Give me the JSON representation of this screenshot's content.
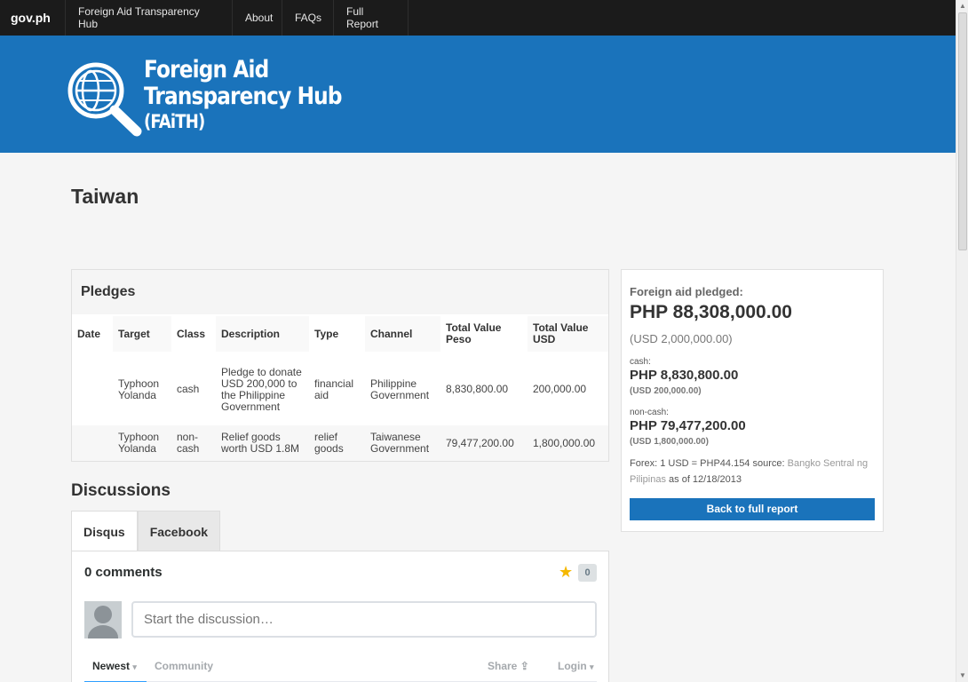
{
  "nav": {
    "brand": "gov.ph",
    "items": [
      {
        "label": "Foreign Aid Transparency Hub"
      },
      {
        "label": "About"
      },
      {
        "label": "FAQs"
      },
      {
        "label": "Full Report"
      }
    ]
  },
  "banner": {
    "logo_line1": "Foreign Aid",
    "logo_line2": "Transparency Hub",
    "logo_line3": "(FAiTH)",
    "color": "#1a73bb"
  },
  "page": {
    "title": "Taiwan"
  },
  "pledges": {
    "heading": "Pledges",
    "columns": [
      "Date",
      "Target",
      "Class",
      "Description",
      "Type",
      "Channel",
      "Total Value Peso",
      "Total Value USD"
    ],
    "rows": [
      {
        "date": "",
        "target": "Typhoon Yolanda",
        "class": "cash",
        "description": "Pledge to donate USD 200,000 to the Philippine Government",
        "type": "financial aid",
        "channel": "Philippine Government",
        "peso": "8,830,800.00",
        "usd": "200,000.00"
      },
      {
        "date": "",
        "target": "Typhoon Yolanda",
        "class": "non-cash",
        "description": "Relief goods worth USD 1.8M",
        "type": "relief goods",
        "channel": "Taiwanese Government",
        "peso": "79,477,200.00",
        "usd": "1,800,000.00"
      }
    ]
  },
  "discussions": {
    "heading": "Discussions",
    "tabs": [
      {
        "label": "Disqus"
      },
      {
        "label": "Facebook"
      }
    ],
    "comments_count": "0 comments",
    "star_count": "0",
    "input_placeholder": "Start the discussion…",
    "sort_newest": "Newest",
    "community": "Community",
    "share": "Share",
    "login": "Login"
  },
  "sidebar": {
    "pledged_label": "Foreign aid pledged:",
    "total_php": "PHP 88,308,000.00",
    "total_usd": "(USD 2,000,000.00)",
    "cash_label": "cash:",
    "cash_php": "PHP 8,830,800.00",
    "cash_usd": "(USD 200,000.00)",
    "noncash_label": "non-cash:",
    "noncash_php": "PHP 79,477,200.00",
    "noncash_usd": "(USD 1,800,000.00)",
    "forex_prefix": "Forex: 1 USD = PHP44.154 source:",
    "forex_source": "Bangko Sentral ng Pilipinas",
    "forex_date": "as of 12/18/2013",
    "button": "Back to full report"
  }
}
